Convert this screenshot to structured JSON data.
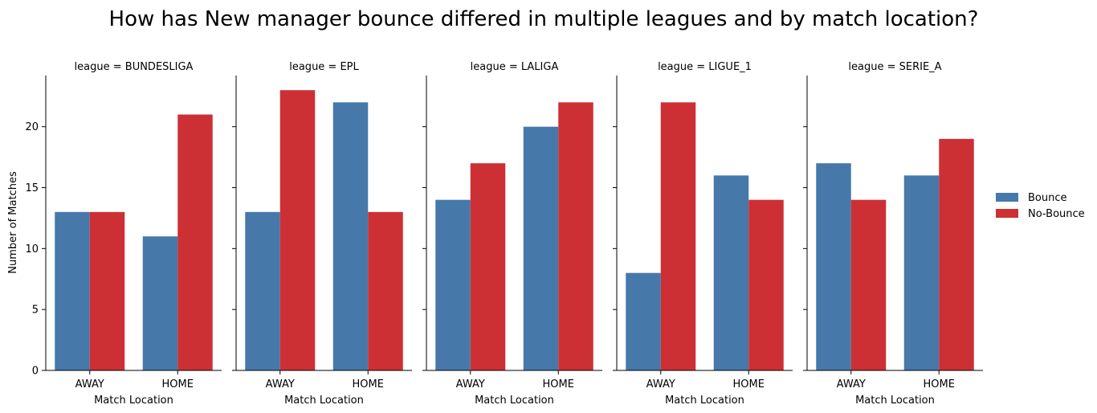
{
  "chart_data": {
    "type": "bar",
    "title": "How has New manager bounce differed in multiple leagues and by match location?",
    "xlabel": "Match Location",
    "ylabel": "Number of Matches",
    "ylim": [
      0,
      24.2
    ],
    "yticks": [
      0,
      5,
      10,
      15,
      20
    ],
    "categories": [
      "AWAY",
      "HOME"
    ],
    "legend": {
      "placement": "right"
    },
    "series_colors": {
      "Bounce": "#4679aa",
      "No-Bounce": "#cc3035"
    },
    "series_order": [
      "Bounce",
      "No-Bounce"
    ],
    "facets": [
      {
        "label": "league = BUNDESLIGA",
        "series": [
          {
            "name": "Bounce",
            "values": [
              13,
              11
            ]
          },
          {
            "name": "No-Bounce",
            "values": [
              13,
              21
            ]
          }
        ]
      },
      {
        "label": "league = EPL",
        "series": [
          {
            "name": "Bounce",
            "values": [
              13,
              22
            ]
          },
          {
            "name": "No-Bounce",
            "values": [
              23,
              13
            ]
          }
        ]
      },
      {
        "label": "league = LALIGA",
        "series": [
          {
            "name": "Bounce",
            "values": [
              14,
              20
            ]
          },
          {
            "name": "No-Bounce",
            "values": [
              17,
              22
            ]
          }
        ]
      },
      {
        "label": "league = LIGUE_1",
        "series": [
          {
            "name": "Bounce",
            "values": [
              8,
              16
            ]
          },
          {
            "name": "No-Bounce",
            "values": [
              22,
              14
            ]
          }
        ]
      },
      {
        "label": "league = SERIE_A",
        "series": [
          {
            "name": "Bounce",
            "values": [
              17,
              16
            ]
          },
          {
            "name": "No-Bounce",
            "values": [
              14,
              19
            ]
          }
        ]
      }
    ]
  }
}
